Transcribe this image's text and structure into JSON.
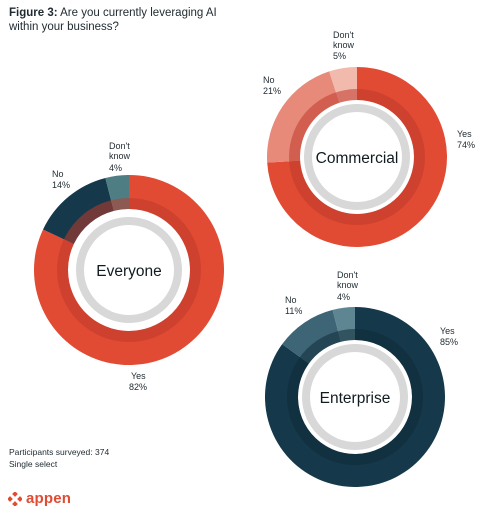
{
  "header": {
    "figure_label": "Figure 3:",
    "question": "Are you currently leveraging AI within your business?"
  },
  "chart_data": [
    {
      "type": "donut",
      "center_label": "Everyone",
      "categories": [
        "Yes",
        "No",
        "Don't know"
      ],
      "values": [
        82,
        14,
        4
      ],
      "value_labels": [
        "82%",
        "14%",
        "4%"
      ],
      "colors": [
        "#e14b33",
        "#15384a",
        "#4e7e83"
      ],
      "inner_ring": "#bf3b2c"
    },
    {
      "type": "donut",
      "center_label": "Commercial",
      "categories": [
        "Yes",
        "No",
        "Don't know"
      ],
      "values": [
        74,
        21,
        5
      ],
      "value_labels": [
        "74%",
        "21%",
        "5%"
      ],
      "colors": [
        "#e14b33",
        "#e88a7a",
        "#f2b9ad"
      ],
      "inner_ring": "#bf3b2c"
    },
    {
      "type": "donut",
      "center_label": "Enterprise",
      "categories": [
        "Yes",
        "No",
        "Don't know"
      ],
      "values": [
        85,
        11,
        4
      ],
      "value_labels": [
        "85%",
        "11%",
        "4%"
      ],
      "colors": [
        "#15384a",
        "#3e6575",
        "#5e8592"
      ],
      "inner_ring": "#0f2b38"
    }
  ],
  "footer": {
    "participants": "Participants surveyed: 374",
    "select_type": "Single select"
  },
  "brand": {
    "name": "appen",
    "color": "#e14b33"
  }
}
